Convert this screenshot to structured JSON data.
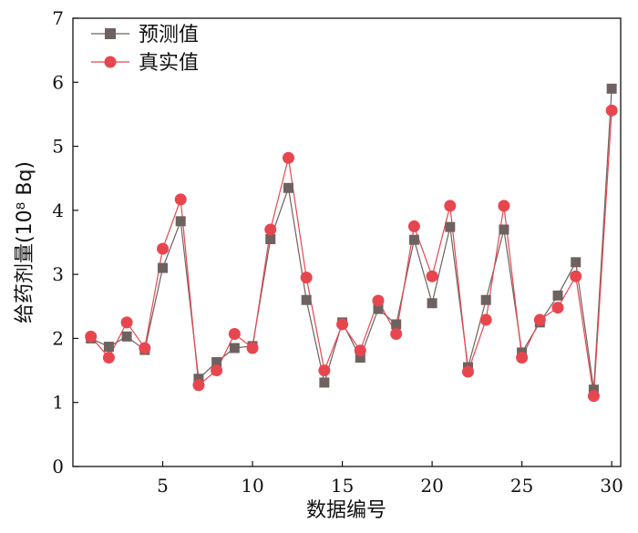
{
  "chart_data": {
    "type": "line",
    "xlabel": "数据编号",
    "ylabel": "给药剂量(10⁸ Bq)",
    "xlim": [
      0,
      30.5
    ],
    "ylim": [
      0,
      7
    ],
    "xticks": [
      5,
      10,
      15,
      20,
      25,
      30
    ],
    "yticks": [
      0,
      1,
      2,
      3,
      4,
      5,
      6,
      7
    ],
    "x": [
      1,
      2,
      3,
      4,
      5,
      6,
      7,
      8,
      9,
      10,
      11,
      12,
      13,
      14,
      15,
      16,
      17,
      18,
      19,
      20,
      21,
      22,
      23,
      24,
      25,
      26,
      27,
      28,
      29,
      30
    ],
    "series": [
      {
        "name": "预测值",
        "marker": "square",
        "color": "#6e6260",
        "values": [
          2.0,
          1.87,
          2.03,
          1.82,
          3.1,
          3.83,
          1.37,
          1.63,
          1.85,
          1.88,
          3.55,
          4.35,
          2.6,
          1.31,
          2.25,
          1.7,
          2.46,
          2.22,
          3.54,
          2.55,
          3.74,
          1.55,
          2.6,
          3.7,
          1.78,
          2.25,
          2.67,
          3.19,
          1.2,
          5.9
        ]
      },
      {
        "name": "真实值",
        "marker": "circle",
        "color": "#e8464f",
        "values": [
          2.03,
          1.7,
          2.25,
          1.85,
          3.4,
          4.17,
          1.27,
          1.5,
          2.07,
          1.85,
          3.7,
          4.82,
          2.95,
          1.5,
          2.22,
          1.81,
          2.59,
          2.07,
          3.75,
          2.97,
          4.07,
          1.48,
          2.29,
          4.07,
          1.7,
          2.29,
          2.48,
          2.97,
          1.1,
          5.56
        ]
      }
    ],
    "legend_position": "top-left"
  }
}
